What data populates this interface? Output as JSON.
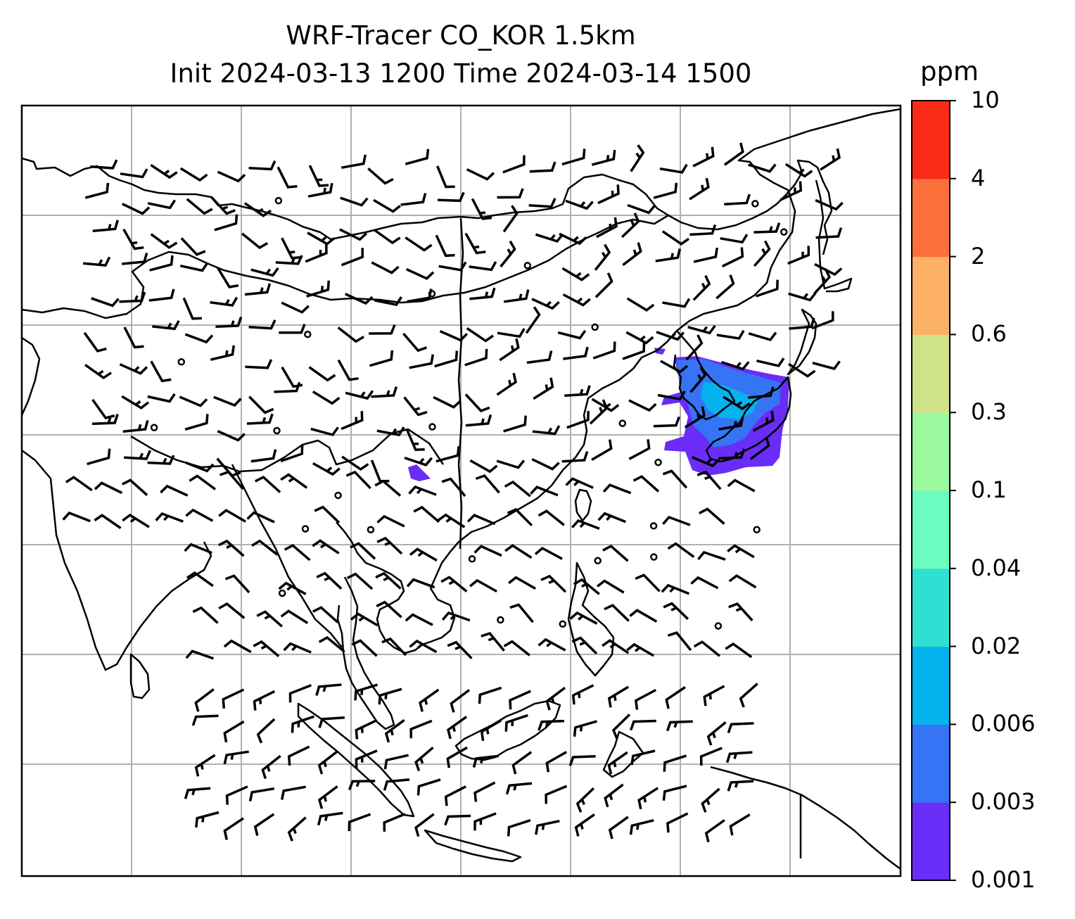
{
  "title": {
    "line1": "WRF-Tracer CO_KOR 1.5km",
    "line2": "Init 2024-03-13 1200 Time 2024-03-14 1500"
  },
  "colorbar": {
    "unit": "ppm",
    "levels": [
      "0.001",
      "0.003",
      "0.006",
      "0.02",
      "0.04",
      "0.1",
      "0.3",
      "0.6",
      "2",
      "4",
      "10"
    ],
    "colors": [
      "#6a2cf7",
      "#3574f5",
      "#04b2ee",
      "#2fe0d2",
      "#6bfcc0",
      "#9cf99d",
      "#cfe28a",
      "#fcb165",
      "#fc703c",
      "#f92b16"
    ]
  },
  "map": {
    "grid": true,
    "plume_colors": {
      "lowest": "#6a2cf7",
      "low": "#3574f5",
      "mid": "#04b2ee"
    }
  }
}
